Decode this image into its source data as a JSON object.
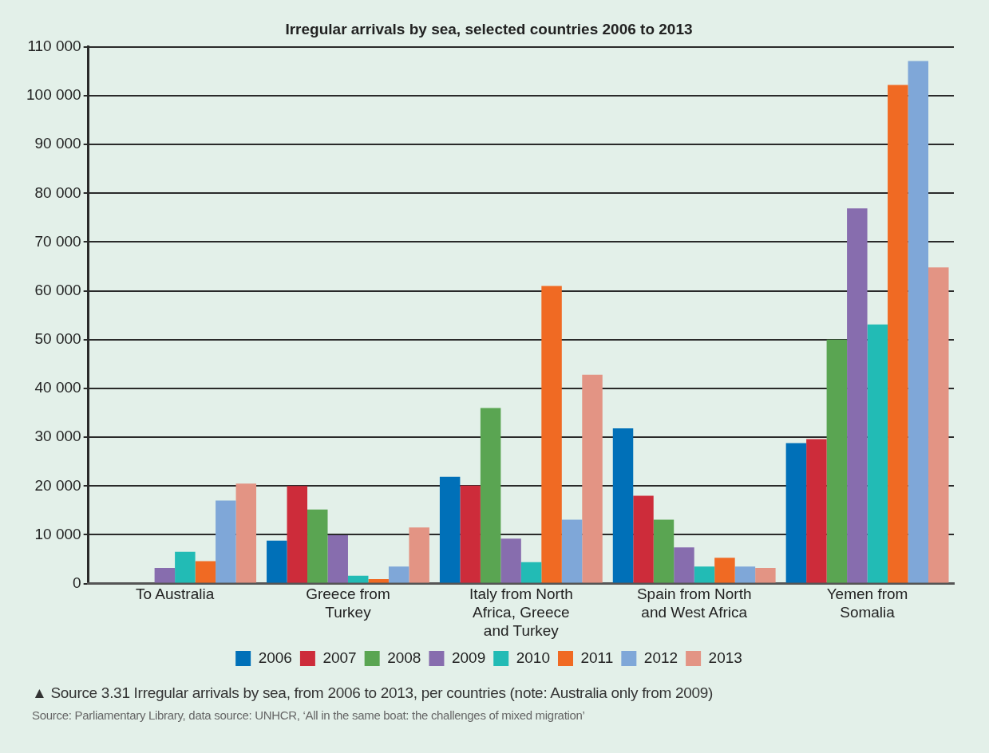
{
  "chart_data": {
    "type": "bar",
    "title": "Irregular arrivals by sea, selected countries 2006 to 2013",
    "categories": [
      "To Australia",
      "Greece from Turkey",
      "Italy from North Africa, Greece and Turkey",
      "Spain from North and West Africa",
      "Yemen from Somalia"
    ],
    "series": [
      {
        "name": "2006",
        "color": "#0070b8",
        "values": [
          null,
          8800,
          21900,
          31800,
          28800
        ]
      },
      {
        "name": "2007",
        "color": "#cd2c3a",
        "values": [
          null,
          20000,
          20100,
          18000,
          29600
        ]
      },
      {
        "name": "2008",
        "color": "#5aa552",
        "values": [
          null,
          15200,
          36000,
          13100,
          50000
        ]
      },
      {
        "name": "2009",
        "color": "#876dae",
        "values": [
          3200,
          9900,
          9200,
          7400,
          76900
        ]
      },
      {
        "name": "2010",
        "color": "#22bbb5",
        "values": [
          6500,
          1600,
          4400,
          3500,
          53100
        ]
      },
      {
        "name": "2011",
        "color": "#f06a23",
        "values": [
          4600,
          900,
          61000,
          5300,
          102200
        ]
      },
      {
        "name": "2012",
        "color": "#7fa7d8",
        "values": [
          17000,
          3500,
          13100,
          3500,
          107100
        ]
      },
      {
        "name": "2013",
        "color": "#e39484",
        "values": [
          20500,
          11500,
          42800,
          3200,
          64800
        ]
      }
    ],
    "ylim": [
      0,
      110000
    ],
    "yticks": [
      0,
      {
        "value": 10000,
        "label": "10 000"
      },
      {
        "value": 20000,
        "label": "20 000"
      },
      {
        "value": 30000,
        "label": "30 000"
      },
      {
        "value": 40000,
        "label": "40 000"
      },
      {
        "value": 50000,
        "label": "50 000"
      },
      {
        "value": 60000,
        "label": "60 000"
      },
      {
        "value": 70000,
        "label": "70 000"
      },
      {
        "value": 80000,
        "label": "80 000"
      },
      {
        "value": 90000,
        "label": "90 000"
      },
      {
        "value": 100000,
        "label": "100 000"
      },
      {
        "value": 110000,
        "label": "110 000"
      }
    ],
    "grid": "y",
    "legend": "bottom",
    "annotations": [
      "▲ Source 3.31  Irregular arrivals by sea, from 2006 to 2013, per countries (note: Australia only from 2009)",
      "Source: Parliamentary Library, data source: UNHCR, ‘All in the same boat: the challenges of mixed migration’"
    ]
  }
}
